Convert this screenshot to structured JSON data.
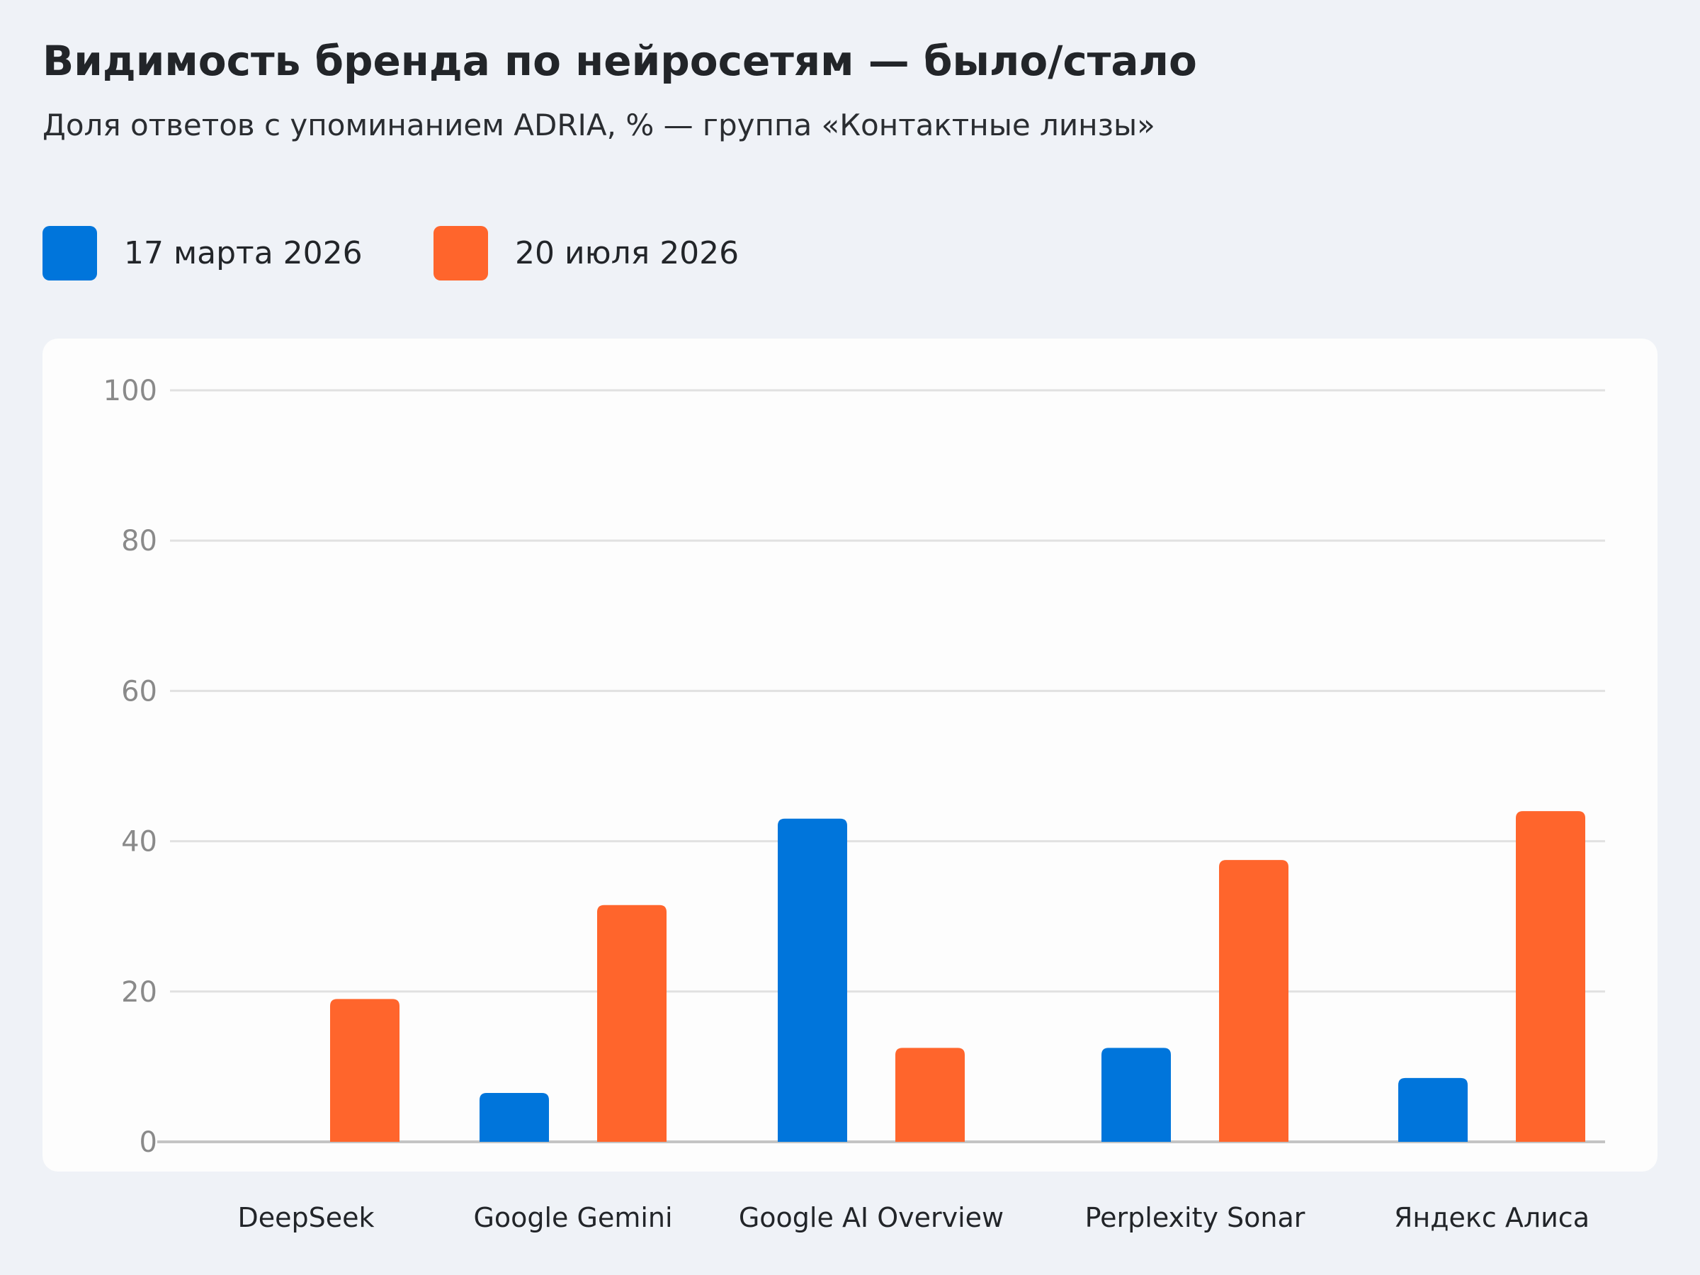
{
  "chart_data": {
    "type": "bar",
    "title": "Видимость бренда по нейросетям — было/стало",
    "subtitle": "Доля ответов с упоминанием ADRIA, % — группа «Контактные линзы»",
    "categories": [
      "DeepSeek",
      "Google Gemini",
      "Google AI Overview",
      "Perplexity Sonar",
      "Яндекс Алиса"
    ],
    "series": [
      {
        "name": "17 марта 2026",
        "color": "#0075db",
        "values": [
          0,
          6.5,
          43,
          12.5,
          8.5
        ]
      },
      {
        "name": "20 июля 2026",
        "color": "#ff652c",
        "values": [
          19,
          31.5,
          12.5,
          37.5,
          44
        ]
      }
    ],
    "ylim": [
      0,
      100
    ],
    "yticks": [
      0,
      20,
      40,
      60,
      80,
      100
    ],
    "grid": true,
    "legend_position": "top-left",
    "xlabel": "",
    "ylabel": ""
  }
}
